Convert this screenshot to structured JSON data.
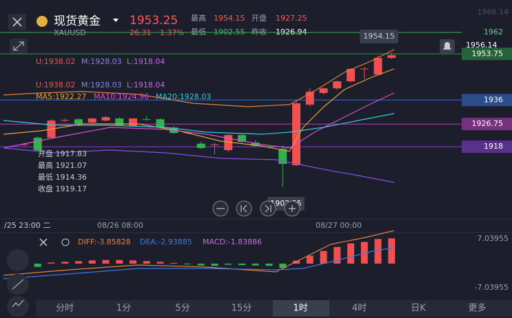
{
  "header": {
    "name": "现货黄金",
    "symbol": "XAUUSD",
    "price": "1953.25",
    "change": "26.31",
    "change_pct": "1.37%",
    "stats": [
      {
        "label": "最高",
        "value": "1954.15"
      },
      {
        "label": "开盘",
        "value": "1927.25"
      },
      {
        "label": "最低",
        "value": "1902.55"
      },
      {
        "label": "昨收",
        "value": "1926.94"
      }
    ]
  },
  "kline": {
    "ylim": [
      1895,
      1969.2
    ],
    "levels": [
      {
        "value": 1962,
        "color": "#3fae55"
      },
      {
        "value": 1953.75,
        "color": "#2f9a45"
      },
      {
        "value": 1936,
        "color": "#3a6fd8"
      },
      {
        "value": 1926.75,
        "color": "#c43fc4"
      },
      {
        "value": 1918,
        "color": "#8a3fd8"
      }
    ],
    "top_price": "1966.14",
    "bell_price": "1956.14",
    "high_tag": "1954.15",
    "low_tag": "1902.55",
    "boll_line1": [
      "U:1938.02",
      "M:1928.03",
      "L:1918.04"
    ],
    "boll_line2": [
      "U:1938.02",
      "M:1928.03",
      "L:1918.04"
    ],
    "ma_line": [
      "MA5:1922.27",
      "MA10:1924.96",
      "MA20:1928.03"
    ],
    "ohlc": [
      "开盘 1917.83",
      "最高 1921.07",
      "最低 1914.36",
      "收盘 1919.17"
    ],
    "candles": [
      [
        1918.8,
        1919.5,
        1918.2,
        1919.0
      ],
      [
        1921.5,
        1922.0,
        1916.2,
        1916.7
      ],
      [
        1921.5,
        1928.6,
        1921.0,
        1928.1
      ],
      [
        1928.1,
        1928.9,
        1927.6,
        1928.3
      ],
      [
        1928.6,
        1929.0,
        1926.5,
        1926.8
      ],
      [
        1927.3,
        1928.9,
        1927.0,
        1928.9
      ],
      [
        1928.1,
        1929.8,
        1927.8,
        1929.4
      ],
      [
        1928.9,
        1929.4,
        1926.0,
        1926.2
      ],
      [
        1926.0,
        1929.0,
        1925.8,
        1928.9
      ],
      [
        1928.6,
        1929.8,
        1928.0,
        1928.4
      ],
      [
        1928.6,
        1929.0,
        1925.0,
        1925.4
      ],
      [
        1925.4,
        1926.0,
        1923.0,
        1923.3
      ],
      [
        1923.3,
        1924.0,
        1922.8,
        1923.5
      ],
      [
        1919.2,
        1920.0,
        1917.2,
        1917.5
      ],
      [
        1918.8,
        1919.5,
        1915.0,
        1918.9
      ],
      [
        1916.7,
        1922.8,
        1916.0,
        1922.5
      ],
      [
        1922.5,
        1923.0,
        1919.5,
        1919.9
      ],
      [
        1919.6,
        1920.5,
        1918.0,
        1918.3
      ],
      [
        1918.0,
        1918.5,
        1917.3,
        1917.9
      ],
      [
        1917.2,
        1918.5,
        1902.55,
        1911.4
      ],
      [
        1910.9,
        1935.5,
        1910.5,
        1934.7
      ],
      [
        1934.2,
        1940.5,
        1933.5,
        1939.2
      ],
      [
        1938.7,
        1940.8,
        1938.0,
        1940.5
      ],
      [
        1940.5,
        1943.5,
        1940.0,
        1943.2
      ],
      [
        1943.2,
        1948.3,
        1942.8,
        1947.96
      ],
      [
        1947.96,
        1948.6,
        1944.0,
        1948.1
      ],
      [
        1945.8,
        1953.0,
        1945.5,
        1952.2
      ],
      [
        1952.2,
        1954.15,
        1951.8,
        1953.25
      ]
    ]
  },
  "time_axis": [
    "/25 23:00 二",
    "08/26 08:00",
    "08/27 00:00"
  ],
  "macd": {
    "labels": [
      "DIFF:-3.85828",
      "DEA:-2.93885",
      "MACD:-1.83886"
    ],
    "ylim": [
      -7.03955,
      7.03955
    ],
    "hist": [
      -0.5,
      -0.9,
      0.3,
      0.5,
      0.7,
      0.9,
      1.0,
      1.0,
      0.9,
      0.7,
      0.5,
      0.2,
      -0.2,
      -0.5,
      -0.6,
      -0.3,
      -0.4,
      -0.5,
      -0.6,
      -1.2,
      0.8,
      2.2,
      3.5,
      4.6,
      5.6,
      6.0,
      6.8,
      7.0
    ]
  },
  "tabs": [
    "分时",
    "1分",
    "5分",
    "15分",
    "1时",
    "4时",
    "日K",
    "更多"
  ]
}
